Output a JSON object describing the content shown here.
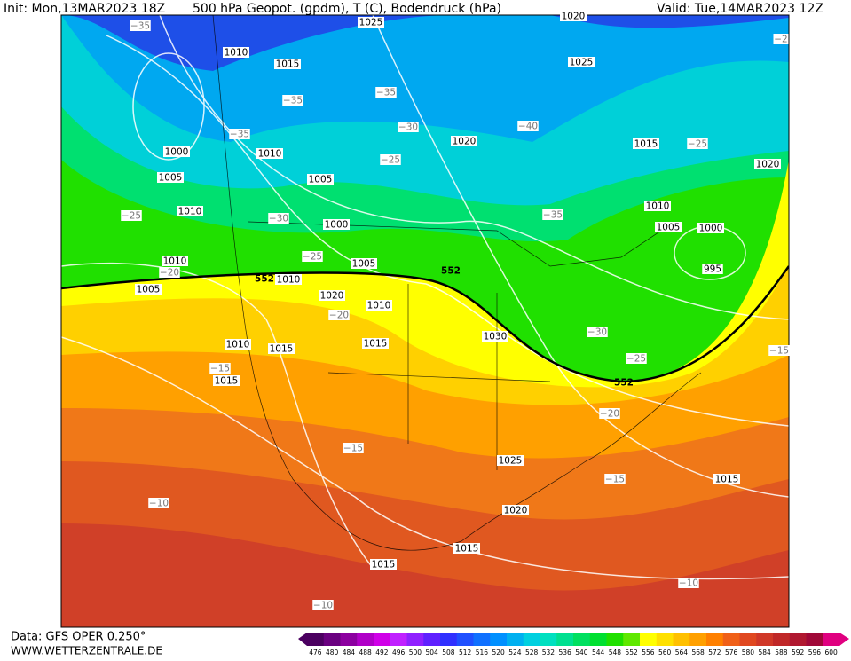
{
  "header": {
    "init": "Init: Mon,13MAR2023 18Z",
    "title": "500 hPa Geopot. (gpdm), T (C), Bodendruck (hPa)",
    "valid": "Valid: Tue,14MAR2023 12Z"
  },
  "footer": {
    "data": "Data: GFS OPER 0.250°",
    "site": "WWW.WETTERZENTRALE.DE"
  },
  "map": {
    "isobar_labels": [
      "1025",
      "1020",
      "1010",
      "1015",
      "1025",
      "1000",
      "1010",
      "1020",
      "1015",
      "1020",
      "1005",
      "1005",
      "1010",
      "1000",
      "1010",
      "1005",
      "1000",
      "995",
      "1010",
      "1005",
      "1010",
      "1005",
      "1020",
      "1010",
      "1030",
      "1010",
      "1015",
      "1015",
      "1015",
      "1025",
      "1015",
      "1020",
      "1015",
      "1015"
    ],
    "temperature_labels": [
      "−35",
      "−2",
      "−35",
      "−35",
      "−35",
      "−30",
      "−40",
      "−25",
      "−25",
      "−25",
      "−35",
      "−30",
      "−25",
      "−20",
      "−20",
      "−30",
      "−15",
      "−25",
      "−15",
      "−20",
      "−15",
      "−15",
      "−10",
      "−10",
      "−10"
    ],
    "height_labels": [
      "552",
      "552",
      "552"
    ]
  },
  "colorbar": {
    "ticks": [
      476,
      480,
      484,
      488,
      492,
      496,
      500,
      504,
      508,
      512,
      516,
      520,
      524,
      528,
      532,
      536,
      540,
      544,
      548,
      552,
      556,
      560,
      564,
      568,
      572,
      576,
      580,
      584,
      588,
      592,
      596,
      600
    ],
    "colors": [
      "#4b0060",
      "#6a0080",
      "#8c00a0",
      "#b000c8",
      "#d000e8",
      "#c020ff",
      "#9020ff",
      "#6020ff",
      "#3030ff",
      "#2050ff",
      "#1070ff",
      "#0090ff",
      "#00b0f0",
      "#00d0e0",
      "#00e0c0",
      "#00e090",
      "#00e060",
      "#00e030",
      "#20e000",
      "#60e800",
      "#ffff00",
      "#ffe000",
      "#ffc000",
      "#ffa000",
      "#ff8000",
      "#f06018",
      "#e04820",
      "#d03828",
      "#c02828",
      "#b01830",
      "#a00838",
      "#e00080"
    ]
  }
}
